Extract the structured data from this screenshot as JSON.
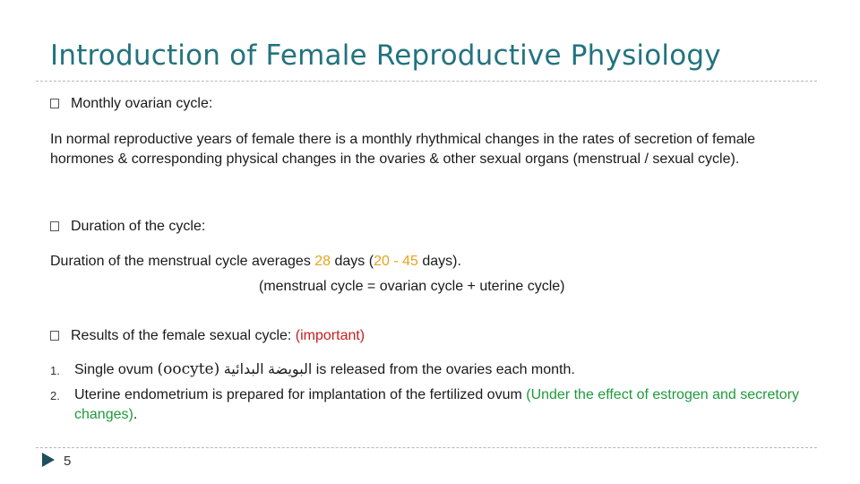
{
  "slide": {
    "title": "Introduction of Female Reproductive Physiology",
    "section1": {
      "bullet_glyph": "□",
      "heading": "Monthly ovarian cycle:",
      "paragraph": "In normal reproductive years of female there is a monthly rhythmical changes in the rates of secretion of female hormones & corresponding physical changes in the ovaries & other sexual organs (menstrual / sexual cycle)."
    },
    "section2": {
      "bullet_glyph": "□",
      "heading": "Duration of the cycle:",
      "line1_pre": "Duration of the menstrual cycle averages ",
      "line1_avg": "28",
      "line1_mid": " days (",
      "line1_range": "20 - 45",
      "line1_post": " days).",
      "line2": "(menstrual cycle = ovarian cycle + uterine cycle)"
    },
    "section3": {
      "bullet_glyph": "□",
      "heading": "Results of the female sexual cycle: ",
      "heading_note": "(important)",
      "items": [
        {
          "number": "1.",
          "pre": "Single ovum ",
          "term": "(oocyte)",
          "arabic": "البويضة البدائية",
          "post": " is released from the ovaries each month."
        },
        {
          "number": "2.",
          "pre": "Uterine endometrium is prepared for implantation of the fertilized ovum ",
          "note": "(Under the effect of estrogen and secretory changes)",
          "post": "."
        }
      ]
    },
    "footer": {
      "page_number": "5"
    }
  },
  "colors": {
    "title": "#23737f",
    "highlight_orange": "#e8a31c",
    "important_red": "#c81e1e",
    "note_green": "#1f9a3c"
  }
}
